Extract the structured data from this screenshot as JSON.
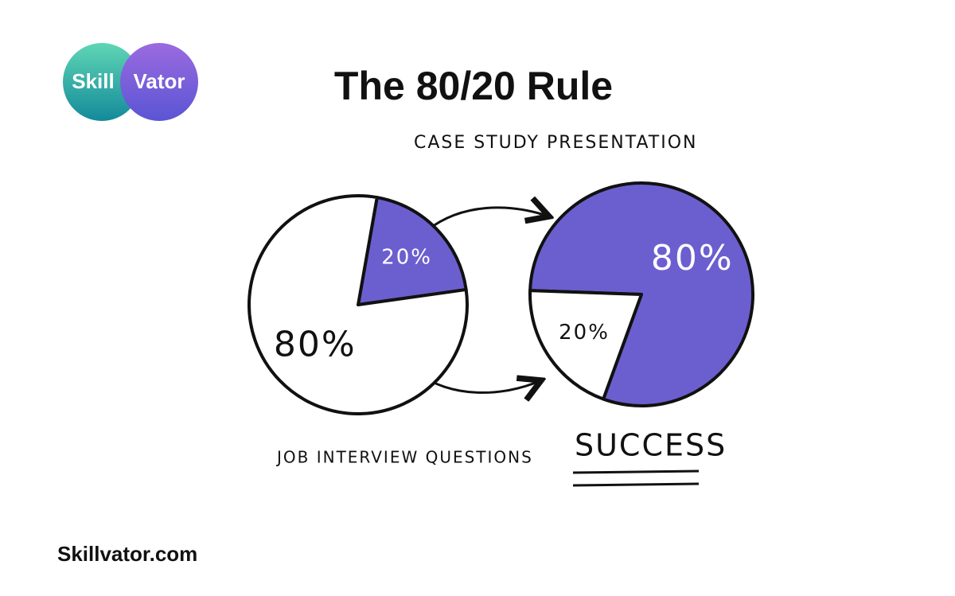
{
  "logo": {
    "left": "Skill",
    "right": "Vator"
  },
  "title": "The 80/20 Rule",
  "chart_data": [
    {
      "type": "pie",
      "categories": [
        "CASE STUDY PRESENTATION",
        "JOB INTERVIEW QUESTIONS"
      ],
      "values": [
        20,
        80
      ],
      "value_labels": [
        "20%",
        "80%"
      ],
      "colors": [
        "#6b5fcf",
        "#ffffff"
      ]
    },
    {
      "type": "pie",
      "annotation": "SUCCESS",
      "values": [
        80,
        20
      ],
      "value_labels": [
        "80%",
        "20%"
      ],
      "colors": [
        "#6b5fcf",
        "#ffffff"
      ]
    }
  ],
  "footer": "Skillvator.com"
}
